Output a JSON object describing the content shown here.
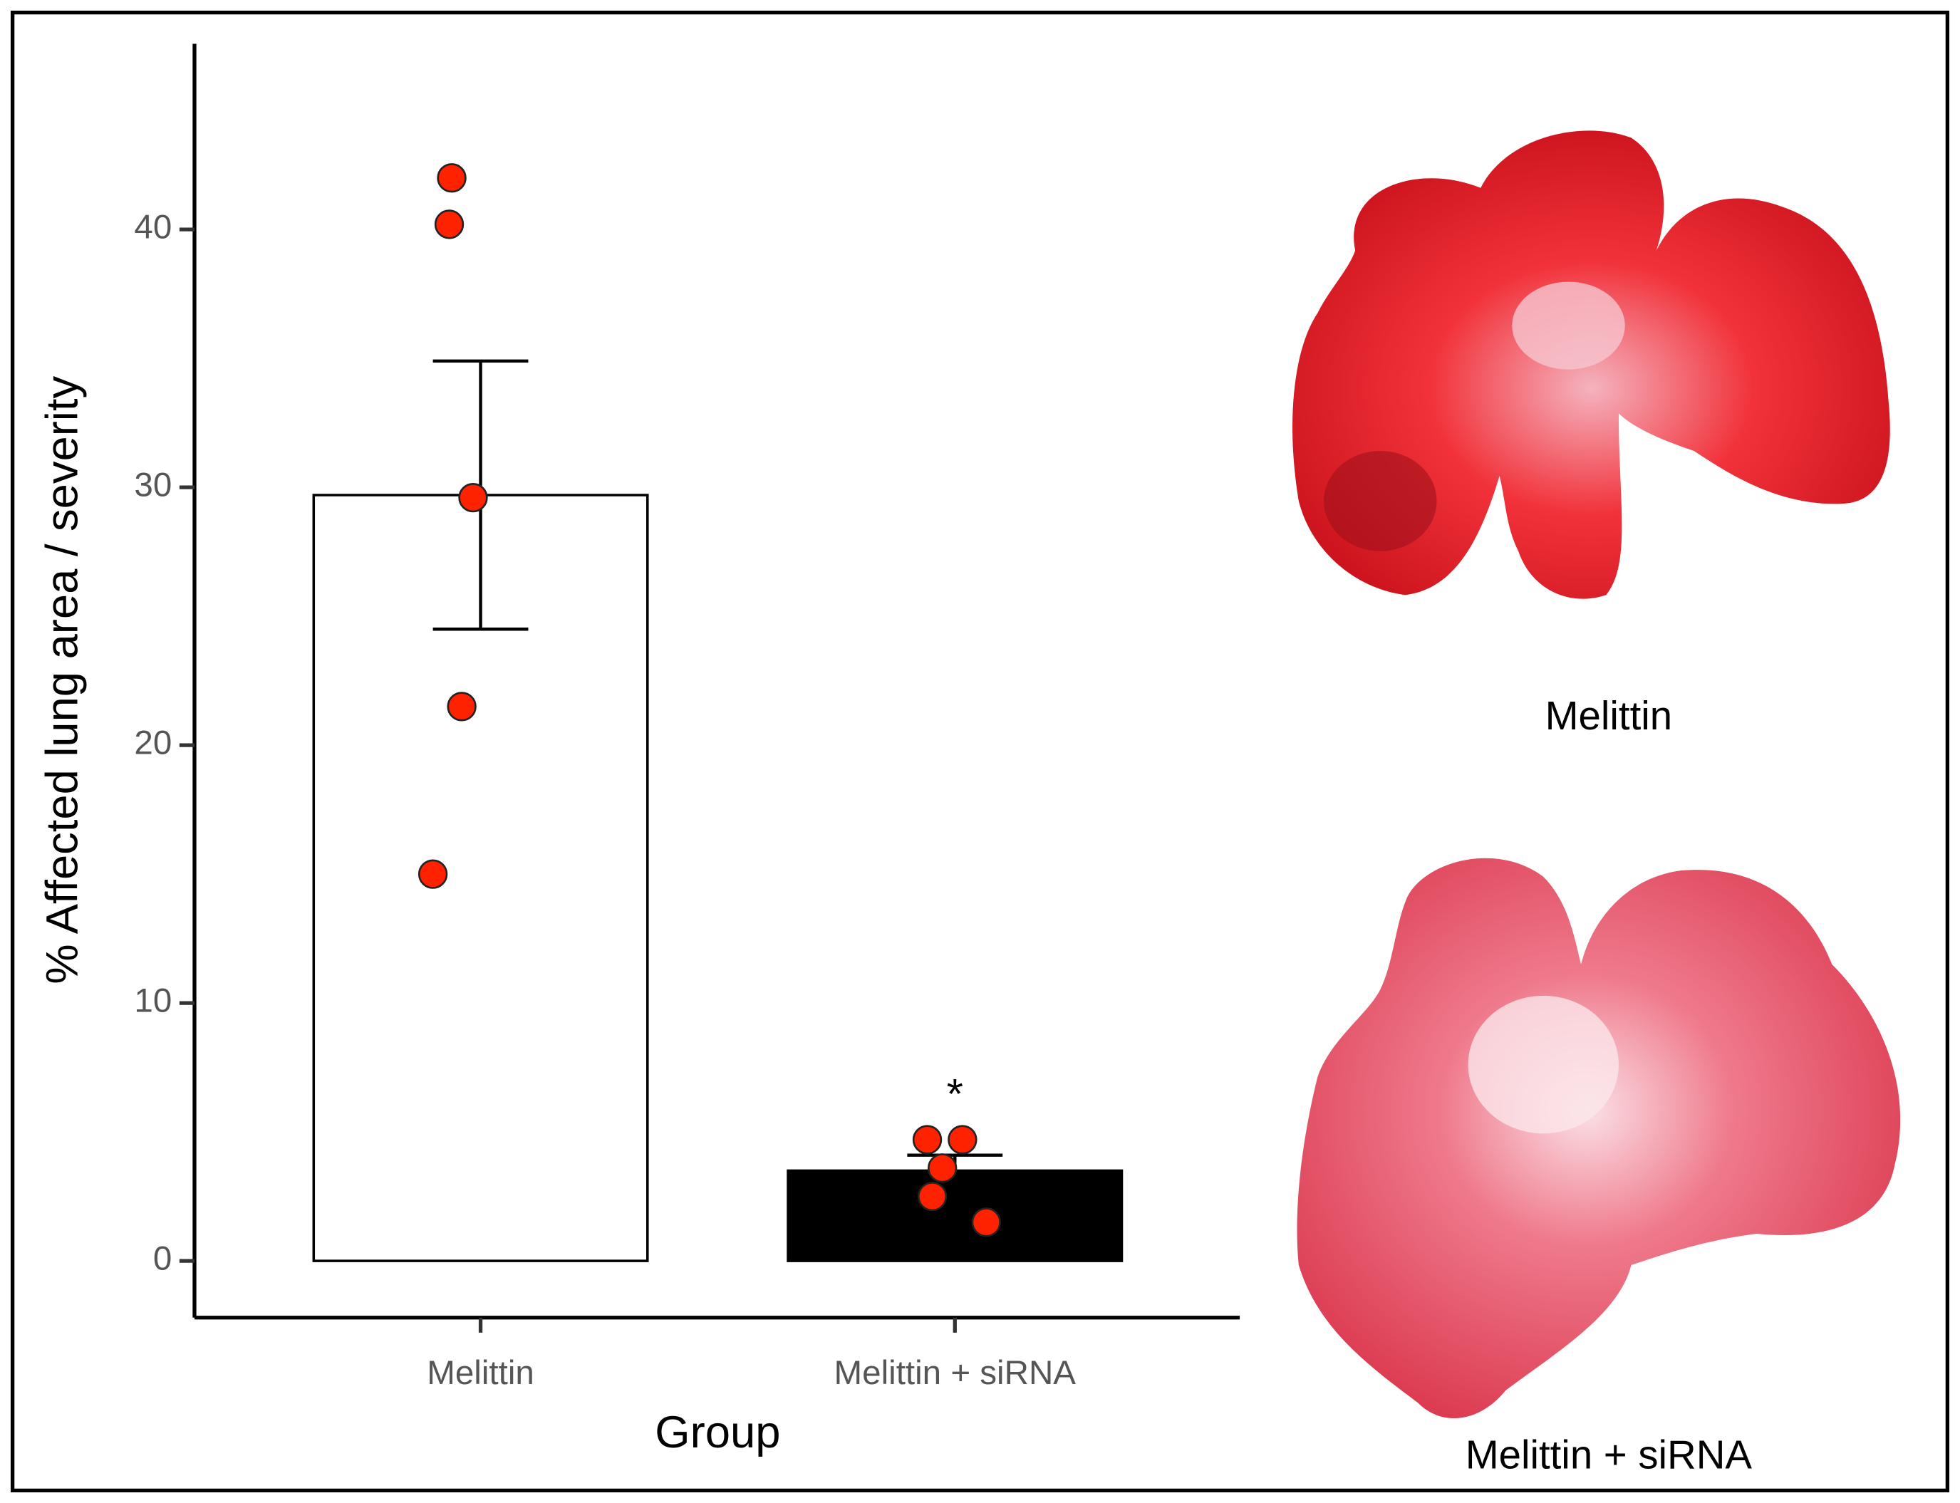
{
  "chart_data": {
    "type": "bar",
    "y_label": "% Affected lung area / severity",
    "x_label": "Group",
    "categories": [
      "Melittin",
      "Melittin + siRNA"
    ],
    "values": [
      29.7,
      3.5
    ],
    "errors": [
      5.2,
      0.6
    ],
    "colors": [
      "#ffffff",
      "#000000"
    ],
    "points": [
      [
        42,
        40.2,
        29.6,
        21.5,
        15
      ],
      [
        4.7,
        4.7,
        3.6,
        2.5,
        1.5
      ]
    ],
    "point_color": "#ff2200",
    "annotation": "*",
    "ylim": [
      -2.2,
      47.2
    ],
    "yticks": [
      0,
      10,
      20,
      30,
      40
    ]
  },
  "images": [
    {
      "caption": "Melittin"
    },
    {
      "caption": "Melittin + siRNA"
    }
  ]
}
